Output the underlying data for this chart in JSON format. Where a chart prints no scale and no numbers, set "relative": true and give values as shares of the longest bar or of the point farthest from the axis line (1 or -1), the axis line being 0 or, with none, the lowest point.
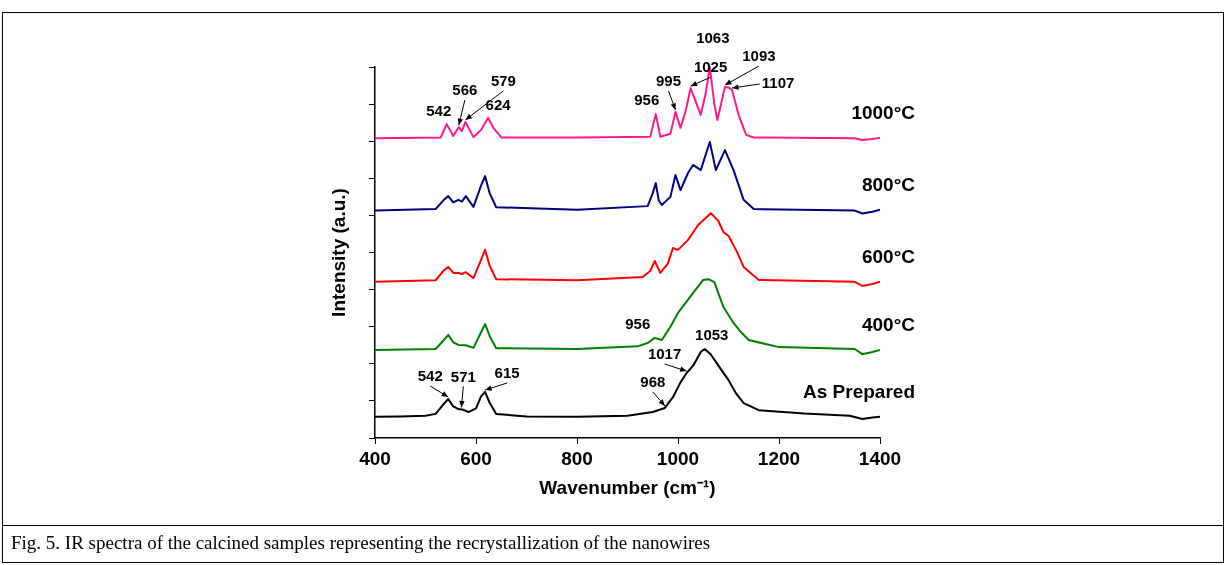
{
  "chart_data": {
    "type": "line",
    "relative": true,
    "xlabel": "Wavenumber (cm⁻¹)",
    "ylabel": "Intensity (a.u.)",
    "xlim": [
      400,
      1400
    ],
    "xticks": [
      400,
      600,
      800,
      1000,
      1200,
      1400
    ],
    "grid": false,
    "legend": false,
    "series": [
      {
        "name": "1000°C",
        "color": "#ff1a8c",
        "x": [
          400,
          530,
          542,
          555,
          566,
          572,
          579,
          595,
          610,
          624,
          635,
          650,
          800,
          945,
          956,
          965,
          985,
          995,
          1005,
          1015,
          1025,
          1045,
          1055,
          1063,
          1072,
          1078,
          1093,
          1100,
          1107,
          1120,
          1135,
          1150,
          1350,
          1365,
          1385,
          1400
        ],
        "values": [
          0.808,
          0.81,
          0.846,
          0.814,
          0.838,
          0.827,
          0.852,
          0.811,
          0.83,
          0.863,
          0.835,
          0.81,
          0.81,
          0.812,
          0.873,
          0.812,
          0.82,
          0.879,
          0.836,
          0.88,
          0.943,
          0.871,
          0.93,
          1.0,
          0.9,
          0.857,
          0.946,
          0.945,
          0.938,
          0.871,
          0.817,
          0.81,
          0.808,
          0.803,
          0.806,
          0.809
        ]
      },
      {
        "name": "800°C",
        "color": "#000080",
        "x": [
          400,
          520,
          535,
          545,
          555,
          565,
          572,
          580,
          595,
          610,
          618,
          627,
          640,
          800,
          940,
          950,
          956,
          962,
          968,
          985,
          995,
          1005,
          1020,
          1030,
          1045,
          1063,
          1075,
          1093,
          1110,
          1130,
          1150,
          1350,
          1365,
          1385,
          1400
        ],
        "values": [
          0.613,
          0.617,
          0.64,
          0.652,
          0.635,
          0.642,
          0.637,
          0.652,
          0.623,
          0.68,
          0.706,
          0.66,
          0.622,
          0.615,
          0.625,
          0.66,
          0.687,
          0.64,
          0.628,
          0.65,
          0.709,
          0.668,
          0.715,
          0.736,
          0.722,
          0.798,
          0.722,
          0.776,
          0.722,
          0.642,
          0.617,
          0.613,
          0.605,
          0.61,
          0.615
        ]
      },
      {
        "name": "600°C",
        "color": "#ff0000",
        "x": [
          400,
          520,
          535,
          545,
          555,
          565,
          572,
          580,
          595,
          610,
          618,
          627,
          640,
          800,
          930,
          945,
          954,
          965,
          980,
          990,
          1000,
          1020,
          1040,
          1065,
          1080,
          1090,
          1100,
          1117,
          1130,
          1160,
          1350,
          1365,
          1385,
          1400
        ],
        "values": [
          0.421,
          0.425,
          0.45,
          0.461,
          0.445,
          0.445,
          0.442,
          0.447,
          0.431,
          0.48,
          0.507,
          0.465,
          0.428,
          0.425,
          0.434,
          0.45,
          0.477,
          0.445,
          0.47,
          0.512,
          0.507,
          0.534,
          0.574,
          0.606,
          0.585,
          0.555,
          0.545,
          0.501,
          0.461,
          0.426,
          0.421,
          0.41,
          0.415,
          0.421
        ]
      },
      {
        "name": "400°C",
        "color": "#008000",
        "x": [
          400,
          520,
          535,
          545,
          555,
          565,
          580,
          595,
          610,
          618,
          627,
          640,
          800,
          920,
          940,
          954,
          968,
          985,
          1000,
          1030,
          1050,
          1060,
          1072,
          1090,
          1110,
          1125,
          1140,
          1200,
          1350,
          1365,
          1385,
          1400
        ],
        "values": [
          0.237,
          0.24,
          0.262,
          0.278,
          0.258,
          0.251,
          0.25,
          0.243,
          0.285,
          0.307,
          0.275,
          0.242,
          0.24,
          0.247,
          0.256,
          0.27,
          0.264,
          0.3,
          0.337,
          0.391,
          0.426,
          0.428,
          0.42,
          0.353,
          0.31,
          0.285,
          0.264,
          0.245,
          0.24,
          0.226,
          0.232,
          0.237
        ]
      },
      {
        "name": "As Prepared",
        "color": "#000000",
        "x": [
          400,
          450,
          500,
          520,
          535,
          545,
          555,
          565,
          575,
          585,
          600,
          610,
          618,
          627,
          640,
          700,
          800,
          900,
          950,
          974,
          990,
          1005,
          1017,
          1030,
          1045,
          1053,
          1065,
          1080,
          1100,
          1115,
          1130,
          1160,
          1250,
          1340,
          1365,
          1385,
          1400
        ],
        "values": [
          0.057,
          0.058,
          0.06,
          0.065,
          0.09,
          0.105,
          0.085,
          0.078,
          0.076,
          0.07,
          0.08,
          0.112,
          0.124,
          0.095,
          0.065,
          0.058,
          0.057,
          0.06,
          0.07,
          0.081,
          0.11,
          0.15,
          0.175,
          0.195,
          0.232,
          0.24,
          0.225,
          0.195,
          0.156,
          0.12,
          0.094,
          0.075,
          0.066,
          0.06,
          0.051,
          0.055,
          0.057
        ]
      }
    ],
    "annotations": [
      {
        "text": "542",
        "x": 542,
        "y": 0.846
      },
      {
        "text": "566",
        "x": 566,
        "y": 0.838
      },
      {
        "text": "579",
        "x": 579,
        "y": 0.852
      },
      {
        "text": "624",
        "x": 624,
        "y": 0.863
      },
      {
        "text": "956",
        "x": 956,
        "y": 0.873
      },
      {
        "text": "995",
        "x": 995,
        "y": 0.879
      },
      {
        "text": "1025",
        "x": 1025,
        "y": 0.943
      },
      {
        "text": "1063",
        "x": 1063,
        "y": 1.0
      },
      {
        "text": "1093",
        "x": 1093,
        "y": 0.946
      },
      {
        "text": "1107",
        "x": 1107,
        "y": 0.938
      },
      {
        "text": "956",
        "x": 954,
        "y": 0.27
      },
      {
        "text": "542",
        "x": 545,
        "y": 0.105
      },
      {
        "text": "571",
        "x": 571,
        "y": 0.077
      },
      {
        "text": "615",
        "x": 618,
        "y": 0.124
      },
      {
        "text": "968",
        "x": 974,
        "y": 0.081
      },
      {
        "text": "1017",
        "x": 1017,
        "y": 0.175
      },
      {
        "text": "1053",
        "x": 1053,
        "y": 0.24
      },
      "Fig. 5. IR spectra of the calcined samples representing the recrystallization of the nanowires"
    ]
  }
}
